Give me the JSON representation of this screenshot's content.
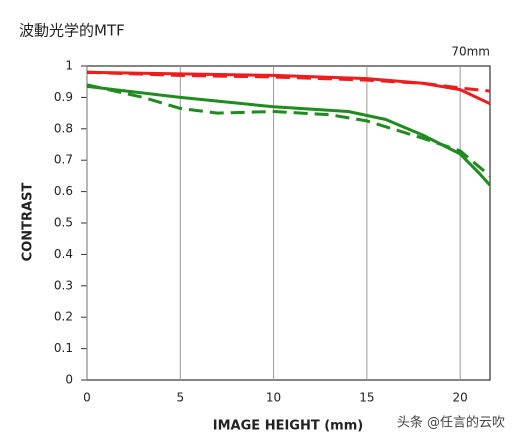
{
  "title": "波動光学的MTF",
  "chart_data": {
    "type": "line",
    "subtitle": "70mm",
    "xlabel": "IMAGE HEIGHT (mm)",
    "ylabel": "CONTRAST",
    "xlim": [
      0,
      21.6
    ],
    "ylim": [
      0,
      1
    ],
    "xticks": [
      0,
      5,
      10,
      15,
      20
    ],
    "yticks": [
      0,
      0.1,
      0.2,
      0.3,
      0.4,
      0.5,
      0.6,
      0.7,
      0.8,
      0.9,
      1
    ],
    "grid": "x",
    "series": [
      {
        "color": "#ee1c1c",
        "dashed": false,
        "x": [
          0,
          5,
          10,
          15,
          18,
          20,
          21.6
        ],
        "values": [
          0.98,
          0.975,
          0.97,
          0.96,
          0.945,
          0.925,
          0.88
        ]
      },
      {
        "color": "#ee1c1c",
        "dashed": true,
        "x": [
          0,
          5,
          10,
          15,
          18,
          20,
          21.6
        ],
        "values": [
          0.98,
          0.97,
          0.965,
          0.955,
          0.945,
          0.93,
          0.92
        ]
      },
      {
        "color": "#1e8c1e",
        "dashed": false,
        "x": [
          0,
          5,
          10,
          14,
          16,
          18,
          20,
          21,
          21.6
        ],
        "values": [
          0.935,
          0.9,
          0.87,
          0.855,
          0.83,
          0.78,
          0.72,
          0.66,
          0.62
        ]
      },
      {
        "color": "#1e8c1e",
        "dashed": true,
        "x": [
          0,
          3,
          5,
          7,
          10,
          13,
          15,
          18,
          20,
          21.6
        ],
        "values": [
          0.94,
          0.9,
          0.865,
          0.85,
          0.855,
          0.845,
          0.825,
          0.77,
          0.73,
          0.65
        ]
      }
    ]
  },
  "watermark": "头条 @任言的云吹"
}
